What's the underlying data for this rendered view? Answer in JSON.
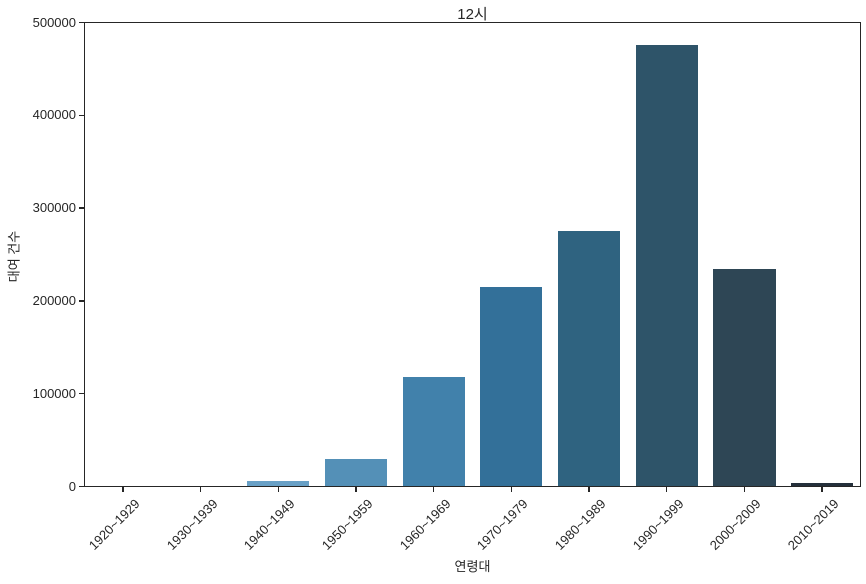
{
  "chart_data": {
    "type": "bar",
    "title": "12시",
    "xlabel": "연령대",
    "ylabel": "대여 건수",
    "categories": [
      "1920~1929",
      "1930~1939",
      "1940~1949",
      "1950~1959",
      "1960~1969",
      "1970~1979",
      "1980~1989",
      "1990~1999",
      "2000~2009",
      "2010~2019"
    ],
    "values": [
      200,
      500,
      5500,
      29500,
      118500,
      214500,
      275500,
      476000,
      234000,
      3400
    ],
    "ylim": [
      0,
      500000
    ],
    "yticks": [
      0,
      100000,
      200000,
      300000,
      400000,
      500000
    ],
    "grid": false,
    "legend_position": "none",
    "bar_colors": [
      "#8fbcd9",
      "#7aadd0",
      "#68a0c6",
      "#5490b7",
      "#4181ab",
      "#337099",
      "#2f6380",
      "#2e5469",
      "#2e4655",
      "#25303b"
    ]
  },
  "style": {
    "background": "#ffffff",
    "spine_color": "#262626",
    "text_color": "#262626"
  }
}
